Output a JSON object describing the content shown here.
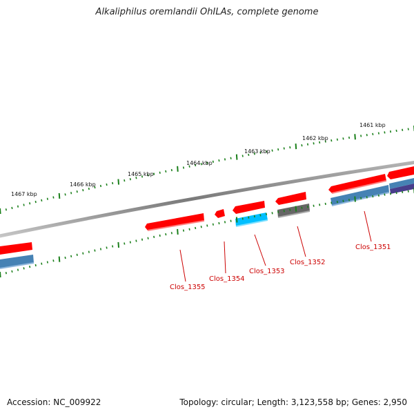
{
  "title": "Alkaliphilus oremlandii OhILAs, complete genome",
  "footer": {
    "accession": "Accession: NC_009922",
    "summary": "Topology: circular; Length: 3,123,558 bp; Genes: 2,950"
  },
  "ruler_labels": [
    "1461 kbp",
    "1462 kbp",
    "1463 kbp",
    "1464 kbp",
    "1465 kbp",
    "1466 kbp",
    "1467 kbp"
  ],
  "gene_labels": [
    "Clos_1351",
    "Clos_1352",
    "Clos_1353",
    "Clos_1354",
    "Clos_1355"
  ],
  "colors": {
    "cds": "#ff0000",
    "gene": "#4682b4",
    "rna": "#00bfff",
    "pseudo": "#666666",
    "other": "#483d8b",
    "backbone": "#808080",
    "tick": "#1a7f1a",
    "label": "#cc0000"
  }
}
